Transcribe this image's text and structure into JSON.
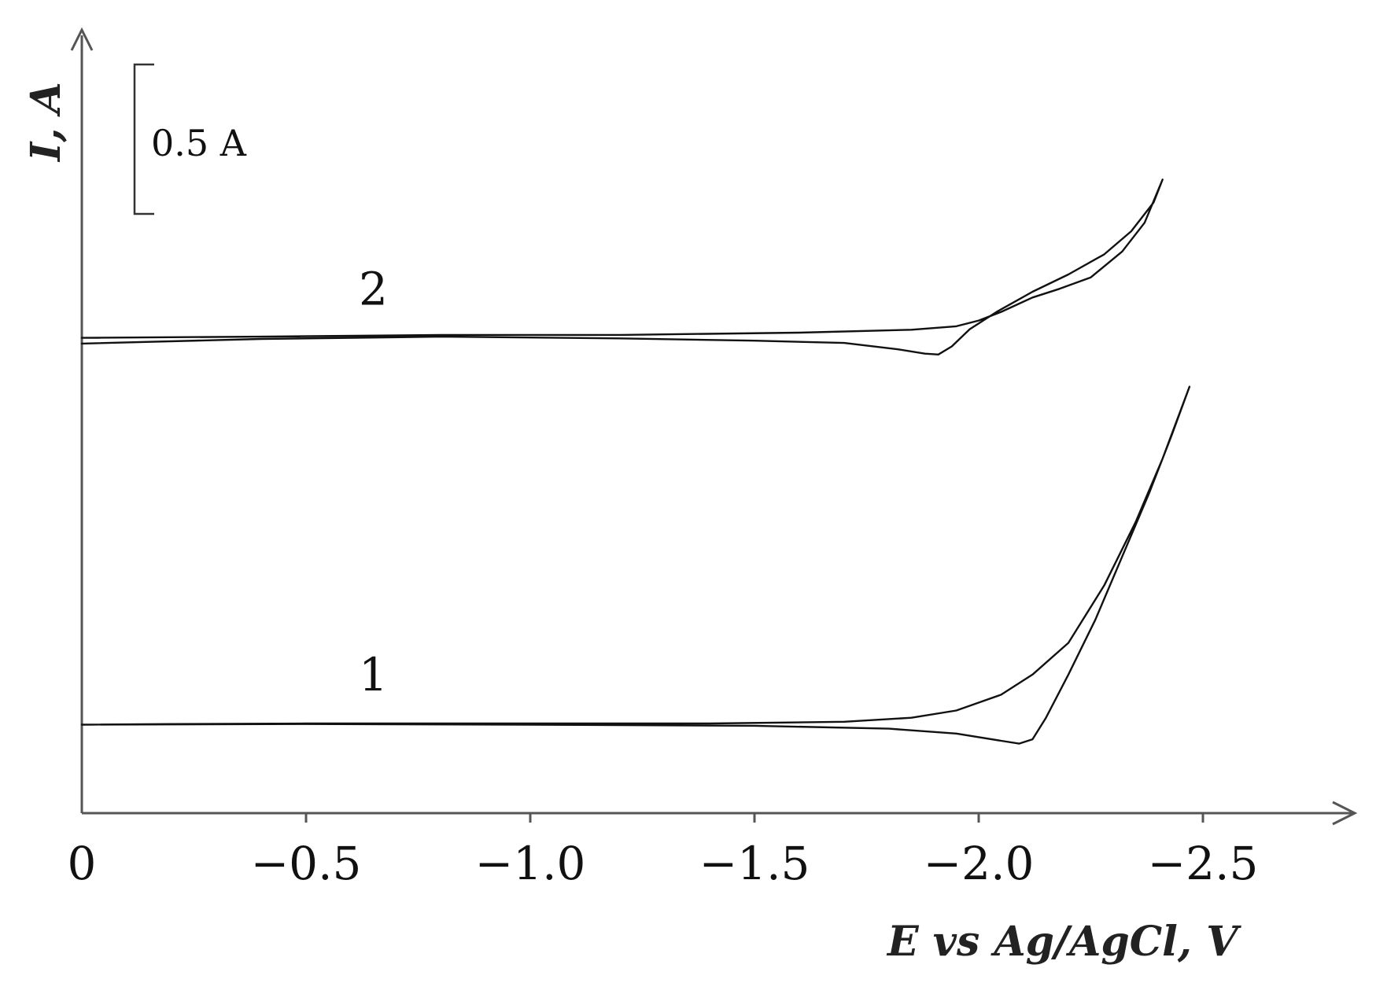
{
  "chart_data": {
    "type": "line",
    "xlabel": "E vs Ag/AgCl, V",
    "ylabel": "I, A",
    "xlim": [
      0,
      -2.85
    ],
    "x_ticks": [
      0,
      -0.5,
      -1.0,
      -1.5,
      -2.0,
      -2.5
    ],
    "x_tick_labels": [
      "0",
      "−0.5",
      "−1.0",
      "−1.5",
      "−2.0",
      "−2.5"
    ],
    "y_tick_labels_shown": false,
    "grid": false,
    "legend": "none",
    "scale_bar": {
      "label": "0.5 A",
      "value": 0.5,
      "unit": "A"
    },
    "series": [
      {
        "name": "1",
        "offset": 0.0,
        "points": [
          [
            0,
            -0.004
          ],
          [
            -0.2,
            -0.002
          ],
          [
            -0.5,
            0.0
          ],
          [
            -1.0,
            0.0
          ],
          [
            -1.4,
            0.0
          ],
          [
            -1.7,
            0.006
          ],
          [
            -1.85,
            0.02
          ],
          [
            -1.95,
            0.045
          ],
          [
            -2.05,
            0.1
          ],
          [
            -2.12,
            0.17
          ],
          [
            -2.2,
            0.28
          ],
          [
            -2.28,
            0.48
          ],
          [
            -2.35,
            0.7
          ],
          [
            -2.41,
            0.92
          ],
          [
            -2.47,
            1.17
          ],
          [
            -2.43,
            1.0
          ],
          [
            -2.38,
            0.8
          ],
          [
            -2.32,
            0.58
          ],
          [
            -2.26,
            0.36
          ],
          [
            -2.2,
            0.17
          ],
          [
            -2.15,
            0.02
          ],
          [
            -2.12,
            -0.055
          ],
          [
            -2.09,
            -0.07
          ],
          [
            -2.05,
            -0.06
          ],
          [
            -1.95,
            -0.035
          ],
          [
            -1.8,
            -0.018
          ],
          [
            -1.5,
            -0.008
          ],
          [
            -1.0,
            -0.004
          ],
          [
            -0.5,
            -0.002
          ],
          [
            0,
            -0.004
          ]
        ]
      },
      {
        "name": "2",
        "offset": 1.34,
        "points": [
          [
            0,
            0.0
          ],
          [
            -0.4,
            0.004
          ],
          [
            -0.8,
            0.01
          ],
          [
            -1.2,
            0.01
          ],
          [
            -1.6,
            0.018
          ],
          [
            -1.85,
            0.028
          ],
          [
            -1.95,
            0.04
          ],
          [
            -2.0,
            0.06
          ],
          [
            -2.05,
            0.09
          ],
          [
            -2.12,
            0.14
          ],
          [
            -2.18,
            0.17
          ],
          [
            -2.25,
            0.21
          ],
          [
            -2.32,
            0.3
          ],
          [
            -2.37,
            0.4
          ],
          [
            -2.41,
            0.55
          ],
          [
            -2.39,
            0.47
          ],
          [
            -2.34,
            0.37
          ],
          [
            -2.28,
            0.29
          ],
          [
            -2.2,
            0.22
          ],
          [
            -2.12,
            0.16
          ],
          [
            -2.04,
            0.09
          ],
          [
            -1.98,
            0.03
          ],
          [
            -1.94,
            -0.03
          ],
          [
            -1.91,
            -0.058
          ],
          [
            -1.88,
            -0.055
          ],
          [
            -1.82,
            -0.04
          ],
          [
            -1.7,
            -0.018
          ],
          [
            -1.5,
            -0.01
          ],
          [
            -1.2,
            -0.002
          ],
          [
            -0.8,
            0.004
          ],
          [
            -0.4,
            -0.004
          ],
          [
            0,
            -0.02
          ]
        ]
      }
    ]
  }
}
